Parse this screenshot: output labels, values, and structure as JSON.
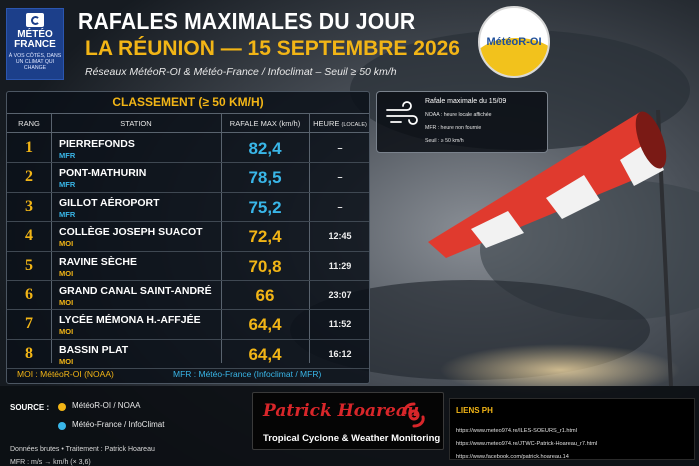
{
  "colors": {
    "accent_gold": "#f2b516",
    "mfr_blue": "#39b6e8",
    "background": "#1b2128",
    "panel": "#0a1018"
  },
  "header": {
    "mf_logo": {
      "name": "MÉTÉO FRANCE",
      "tagline": "À VOS CÔTÉS, DANS UN CLIMAT QUI CHANGE"
    },
    "title": "RAFALES MAXIMALES DU JOUR",
    "date_line": "LA RÉUNION — 15 SEPTEMBRE 2026",
    "subtitle": "Réseaux MétéoR-OI & Météo-France / Infoclimat – Seuil ≥ 50 km/h",
    "moi_logo": "MétéoR-OI"
  },
  "ranking": {
    "heading": "CLASSEMENT (≥ 50 KM/H)",
    "columns": {
      "rank": "RANG",
      "station": "STATION",
      "gust": "RAFALE MAX (km/h)",
      "time": "HEURE",
      "time_note": "(LOCALE)"
    },
    "rows": [
      {
        "rank": "1",
        "station": "PIERREFONDS",
        "network": "MFR",
        "gust": "82,4",
        "time": "–"
      },
      {
        "rank": "2",
        "station": "PONT-MATHURIN",
        "network": "MFR",
        "gust": "78,5",
        "time": "–"
      },
      {
        "rank": "3",
        "station": "GILLOT AÉROPORT",
        "network": "MFR",
        "gust": "75,2",
        "time": "–"
      },
      {
        "rank": "4",
        "station": "COLLÈGE JOSEPH SUACOT",
        "network": "MOI",
        "gust": "72,4",
        "time": "12:45"
      },
      {
        "rank": "5",
        "station": "RAVINE SÈCHE",
        "network": "MOI",
        "gust": "70,8",
        "time": "11:29"
      },
      {
        "rank": "6",
        "station": "GRAND CANAL SAINT-ANDRÉ",
        "network": "MOI",
        "gust": "66",
        "time": "23:07"
      },
      {
        "rank": "7",
        "station": "LYCÉE MÉMONA H.-AFFJÉE",
        "network": "MOI",
        "gust": "64,4",
        "time": "11:52"
      },
      {
        "rank": "8",
        "station": "BASSIN PLAT",
        "network": "MOI",
        "gust": "64,4",
        "time": "16:12"
      }
    ],
    "legend_moi": "MOI : MétéoR-OI (NOAA)",
    "legend_mfr": "MFR : Météo-France (Infoclimat / MFR)"
  },
  "infobox": {
    "icon": "wind-icon",
    "title": "Rafale maximale du 15/09",
    "lines": [
      "NOAA : heure locale affichée",
      "MFR : heure non fournie",
      "Seuil : ≥ 50 km/h"
    ]
  },
  "footer": {
    "source_label": "SOURCE :",
    "source_moi": "MétéoR-OI / NOAA",
    "source_mfr": "Météo-France / InfoClimat",
    "credit_1": "Données brutes • Traitement : Patrick Hoareau",
    "credit_2": "MFR : m/s → km/h (× 3,6)",
    "ph_name": "Patrick Hoareau",
    "ph_tagline": "Tropical Cyclone & Weather Monitoring",
    "links_title": "LIENS PH",
    "links": [
      "https://www.meteo974.re/ILES-SOEURS_r1.html",
      "https://www.meteo974.re/JTWC-Patrick-Hoareau_r7.html",
      "https://www.facebook.com/patrick.hoareau.14"
    ]
  }
}
